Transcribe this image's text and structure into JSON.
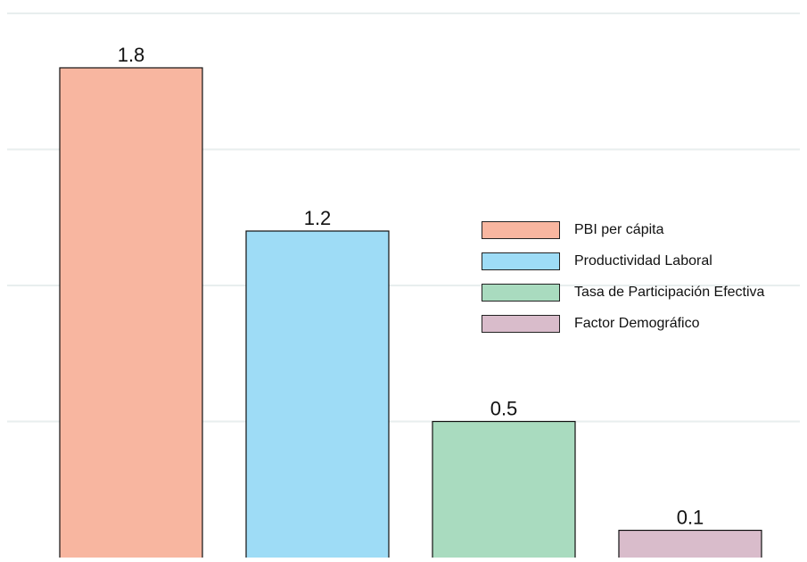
{
  "chart_data": {
    "type": "bar",
    "categories": [
      "PBI per cápita",
      "Productividad Laboral",
      "Tasa de Participación Efectiva",
      "Factor Demográfico"
    ],
    "values": [
      1.8,
      1.2,
      0.5,
      0.1
    ],
    "value_labels": [
      "1.8",
      "1.2",
      "0.5",
      "0.1"
    ],
    "colors": [
      "#f8b6a0",
      "#9edcf6",
      "#a9dbbf",
      "#d9bccb"
    ],
    "ylim": [
      0,
      2
    ],
    "grid": true,
    "grid_values": [
      0.5,
      1.0,
      1.5,
      2.0
    ],
    "grid_color": "#e8eeee",
    "bar_outline_color": "#111111",
    "legend_position": "right",
    "title": "",
    "xlabel": "",
    "ylabel": ""
  },
  "legend": {
    "items": [
      {
        "label": "PBI per cápita",
        "color": "#f8b6a0"
      },
      {
        "label": "Productividad Laboral",
        "color": "#9edcf6"
      },
      {
        "label": "Tasa de Participación Efectiva",
        "color": "#a9dbbf"
      },
      {
        "label": "Factor Demográfico",
        "color": "#d9bccb"
      }
    ]
  }
}
